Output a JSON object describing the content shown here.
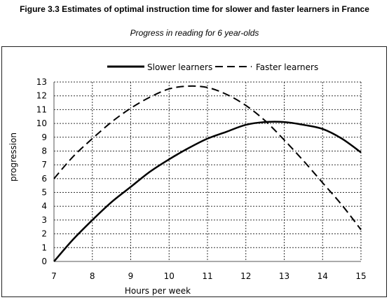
{
  "figure": {
    "title": "Figure 3.3 Estimates of optimal instruction time for slower and faster learners in France",
    "subtitle": "Progress in reading for 6 year-olds"
  },
  "chart_data": {
    "type": "line",
    "title": "",
    "xlabel": "Hours per week",
    "ylabel": "progression",
    "xlim": [
      7,
      15
    ],
    "ylim": [
      0,
      13
    ],
    "x_ticks": [
      7,
      8,
      9,
      10,
      11,
      12,
      13,
      14,
      15
    ],
    "y_ticks": [
      0,
      1,
      2,
      3,
      4,
      5,
      6,
      7,
      8,
      9,
      10,
      11,
      12,
      13
    ],
    "grid": true,
    "legend_position": "top-center",
    "series": [
      {
        "name": "Slower learners",
        "style": "solid",
        "color": "#000000",
        "points": [
          [
            7,
            0
          ],
          [
            7.5,
            1.6
          ],
          [
            8,
            3.0
          ],
          [
            8.5,
            4.3
          ],
          [
            9,
            5.4
          ],
          [
            9.5,
            6.5
          ],
          [
            10,
            7.4
          ],
          [
            10.5,
            8.2
          ],
          [
            11,
            8.9
          ],
          [
            11.5,
            9.4
          ],
          [
            12,
            9.9
          ],
          [
            12.5,
            10.1
          ],
          [
            13,
            10.1
          ],
          [
            13.5,
            9.9
          ],
          [
            14,
            9.6
          ],
          [
            14.5,
            8.9
          ],
          [
            15,
            7.9
          ]
        ]
      },
      {
        "name": "Faster learners",
        "style": "dashed",
        "color": "#000000",
        "points": [
          [
            7,
            6.0
          ],
          [
            7.5,
            7.6
          ],
          [
            8,
            8.9
          ],
          [
            8.5,
            10.1
          ],
          [
            9,
            11.1
          ],
          [
            9.5,
            11.9
          ],
          [
            10,
            12.5
          ],
          [
            10.5,
            12.7
          ],
          [
            11,
            12.6
          ],
          [
            11.5,
            12.1
          ],
          [
            12,
            11.3
          ],
          [
            12.5,
            10.2
          ],
          [
            13,
            8.8
          ],
          [
            13.5,
            7.3
          ],
          [
            14,
            5.7
          ],
          [
            14.5,
            4.1
          ],
          [
            15,
            2.3
          ]
        ]
      }
    ]
  }
}
